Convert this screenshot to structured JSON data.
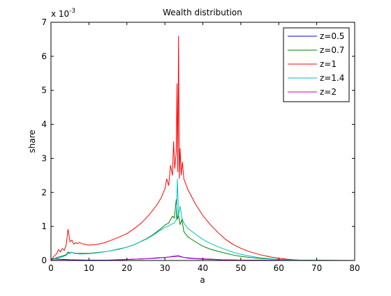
{
  "chart_data": {
    "type": "line",
    "title": "Wealth distribution",
    "xlabel": "a",
    "ylabel": "share",
    "y_exponent_label": "x 10",
    "y_exponent_power": "-3",
    "xlim": [
      0,
      80
    ],
    "ylim": [
      0,
      0.007
    ],
    "x_ticks": [
      0,
      10,
      20,
      30,
      40,
      50,
      60,
      70,
      80
    ],
    "x_tick_labels": [
      "0",
      "10",
      "20",
      "30",
      "40",
      "50",
      "60",
      "70",
      "80"
    ],
    "y_ticks": [
      0,
      0.001,
      0.002,
      0.003,
      0.004,
      0.005,
      0.006,
      0.007
    ],
    "y_tick_labels": [
      "0",
      "1",
      "2",
      "3",
      "4",
      "5",
      "6",
      "7"
    ],
    "grid": false,
    "legend_position": "top-right",
    "series": [
      {
        "name": "z=0.5",
        "color": "#0000ff",
        "x": [
          0,
          5,
          10,
          15,
          20,
          25,
          28,
          30,
          31,
          32,
          33,
          33.5,
          34,
          35,
          36,
          38,
          40,
          45,
          50,
          60,
          70,
          80
        ],
        "y": [
          5e-05,
          2e-05,
          1e-05,
          1e-05,
          3e-05,
          5e-05,
          7e-05,
          9e-05,
          0.0001,
          0.00012,
          0.00013,
          0.00014,
          0.00012,
          9e-05,
          7e-05,
          5e-05,
          4e-05,
          2e-05,
          1e-05,
          5e-06,
          2e-06,
          1e-06
        ]
      },
      {
        "name": "z=0.7",
        "color": "#008000",
        "x": [
          0,
          1,
          2,
          3,
          4,
          4.5,
          5,
          5.5,
          6,
          7,
          8,
          10,
          12,
          15,
          18,
          20,
          22,
          25,
          27,
          29,
          30,
          31,
          31.5,
          32,
          32.5,
          33,
          33.3,
          33.6,
          34,
          34.5,
          35,
          36,
          38,
          40,
          42,
          45,
          48,
          50,
          55,
          60,
          65,
          70,
          80
        ],
        "y": [
          3e-05,
          6e-05,
          0.0001,
          0.00013,
          0.00017,
          0.00025,
          0.00022,
          0.00024,
          0.00022,
          0.00021,
          0.00021,
          0.00021,
          0.00023,
          0.00027,
          0.00034,
          0.00039,
          0.00047,
          0.00063,
          0.00077,
          0.00094,
          0.00104,
          0.0011,
          0.0012,
          0.0013,
          0.00125,
          0.0018,
          0.0012,
          0.00135,
          0.00105,
          0.0012,
          0.00085,
          0.0007,
          0.00055,
          0.00042,
          0.00033,
          0.00024,
          0.00016,
          0.00012,
          6e-05,
          3e-05,
          1e-05,
          5e-06,
          1e-06
        ]
      },
      {
        "name": "z=1",
        "color": "#ff0000",
        "x": [
          0,
          0.5,
          1,
          1.5,
          2,
          2.5,
          3,
          3.5,
          4,
          4.5,
          5,
          5.5,
          6,
          6.5,
          7,
          7.5,
          8,
          9,
          10,
          12,
          14,
          16,
          18,
          20,
          22,
          24,
          26,
          28,
          29,
          30,
          30.5,
          31,
          31.5,
          32,
          32.3,
          32.6,
          33,
          33.2,
          33.4,
          33.6,
          33.8,
          34,
          34.3,
          34.6,
          35,
          36,
          38,
          40,
          42,
          44,
          46,
          48,
          50,
          52,
          55,
          58,
          60,
          62,
          64,
          66,
          68,
          70,
          75,
          80
        ],
        "y": [
          2e-05,
          8e-05,
          0.00015,
          0.0002,
          0.00032,
          0.00025,
          0.00035,
          0.0003,
          0.00045,
          0.00092,
          0.00055,
          0.0006,
          0.00048,
          0.00052,
          0.0005,
          0.00053,
          0.0005,
          0.00047,
          0.00045,
          0.00047,
          0.00052,
          0.0006,
          0.00069,
          0.00079,
          0.00094,
          0.00112,
          0.00136,
          0.00165,
          0.00184,
          0.0021,
          0.0024,
          0.0022,
          0.0028,
          0.0025,
          0.0035,
          0.0027,
          0.0032,
          0.0052,
          0.0026,
          0.0066,
          0.0024,
          0.0033,
          0.0025,
          0.0029,
          0.0024,
          0.0021,
          0.00167,
          0.00132,
          0.00105,
          0.00082,
          0.00062,
          0.00047,
          0.00036,
          0.00027,
          0.00017,
          0.0001,
          7e-05,
          4e-05,
          2e-05,
          8e-06,
          4e-06,
          2e-06,
          1e-06,
          5e-07
        ]
      },
      {
        "name": "z=1.4",
        "color": "#00bfbf",
        "x": [
          0,
          1,
          2,
          3,
          4,
          4.5,
          5,
          5.5,
          6,
          7,
          8,
          10,
          12,
          15,
          18,
          20,
          22,
          25,
          27,
          29,
          30,
          31,
          32,
          32.5,
          33,
          33.3,
          33.6,
          34,
          34.5,
          35,
          36,
          38,
          40,
          42,
          45,
          48,
          50,
          55,
          60,
          65,
          70,
          80
        ],
        "y": [
          2e-05,
          4e-05,
          8e-05,
          0.00011,
          0.00015,
          0.00022,
          0.0002,
          0.00025,
          0.00021,
          0.0002,
          0.00019,
          0.0002,
          0.00022,
          0.00027,
          0.00033,
          0.00039,
          0.00047,
          0.00062,
          0.00075,
          0.0009,
          0.00097,
          0.00102,
          0.00108,
          0.0011,
          0.0012,
          0.0024,
          0.0013,
          0.0016,
          0.00125,
          0.0011,
          0.00095,
          0.00078,
          0.00062,
          0.0005,
          0.00036,
          0.00024,
          0.00018,
          8e-05,
          3e-05,
          1e-05,
          3e-06,
          1e-06
        ]
      },
      {
        "name": "z=2",
        "color": "#bf00bf",
        "x": [
          0,
          10,
          15,
          18,
          20,
          25,
          28,
          30,
          31,
          32,
          33,
          33.5,
          34,
          35,
          36,
          38,
          40,
          42,
          45,
          50,
          60,
          70,
          80
        ],
        "y": [
          5e-06,
          3e-06,
          5e-06,
          1e-05,
          3e-05,
          5e-05,
          8e-05,
          9e-05,
          0.0001,
          0.00011,
          0.00012,
          0.00013,
          0.00011,
          9e-05,
          8e-05,
          6e-05,
          5e-05,
          4e-05,
          2e-05,
          1e-05,
          3e-06,
          1e-06,
          5e-07
        ]
      }
    ]
  }
}
